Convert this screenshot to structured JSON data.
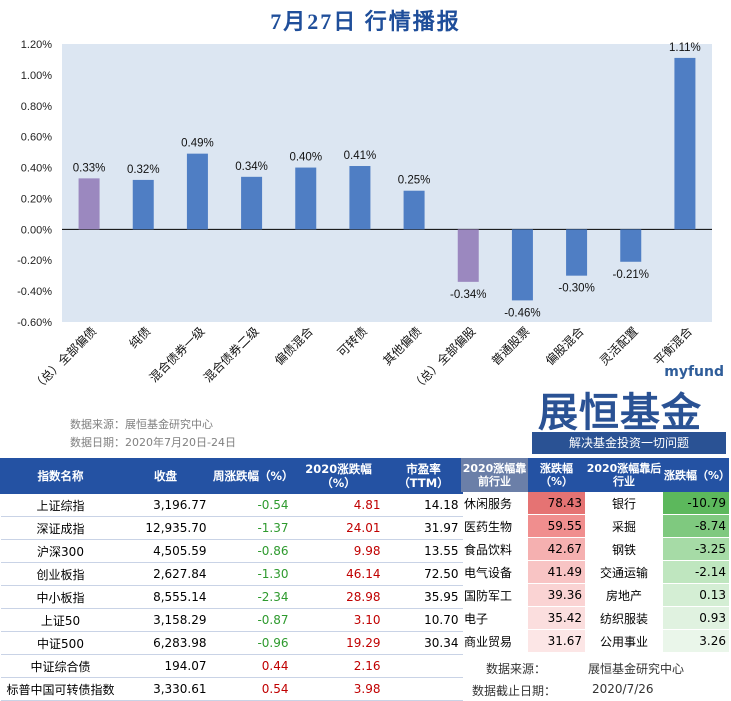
{
  "title": "7月27日  行情播报",
  "chart_data": {
    "type": "bar",
    "categories": [
      "（总）全部偏债",
      "纯债",
      "混合债券一级",
      "混合债券二级",
      "偏债混合",
      "可转债",
      "其他偏债",
      "（总）全部偏股",
      "普通股票",
      "偏股混合",
      "灵活配置",
      "平衡混合"
    ],
    "values": [
      0.33,
      0.32,
      0.49,
      0.34,
      0.4,
      0.41,
      0.25,
      -0.34,
      -0.46,
      -0.3,
      -0.21,
      1.11
    ],
    "data_labels": [
      "0.33%",
      "0.32%",
      "0.49%",
      "0.34%",
      "0.40%",
      "0.41%",
      "0.25%",
      "-0.34%",
      "-0.46%",
      "-0.30%",
      "-0.21%",
      "1.11%"
    ],
    "yticks": [
      "1.20%",
      "1.00%",
      "0.80%",
      "0.60%",
      "0.40%",
      "0.20%",
      "0.00%",
      "-0.20%",
      "-0.40%",
      "-0.60%"
    ],
    "ylim": [
      -0.6,
      1.2
    ],
    "colors": {
      "highlight": "#9b88bf",
      "normal": "#4f7ec4",
      "plot_bg": "#dce6f2"
    },
    "highlight_indices": [
      0,
      7
    ],
    "grid": false
  },
  "source": {
    "line1": "数据来源：展恒基金研究中心",
    "line2": "数据日期：2020年7月20日-24日"
  },
  "logo": {
    "myfund": "myfund",
    "brand": "展恒基金",
    "slogan": "解决基金投资一切问题"
  },
  "index_table": {
    "headers": [
      "指数名称",
      "收盘",
      "周涨跌幅（%）",
      "2020涨跌幅（%）",
      "市盈率（TTM）"
    ],
    "rows": [
      {
        "name": "上证综指",
        "close": "3,196.77",
        "week": "-0.54",
        "ytd": "4.81",
        "pe": "14.18"
      },
      {
        "name": "深证成指",
        "close": "12,935.70",
        "week": "-1.37",
        "ytd": "24.01",
        "pe": "31.97"
      },
      {
        "name": "沪深300",
        "close": "4,505.59",
        "week": "-0.86",
        "ytd": "9.98",
        "pe": "13.55"
      },
      {
        "name": "创业板指",
        "close": "2,627.84",
        "week": "-1.30",
        "ytd": "46.14",
        "pe": "72.50"
      },
      {
        "name": "中小板指",
        "close": "8,555.14",
        "week": "-2.34",
        "ytd": "28.98",
        "pe": "35.95"
      },
      {
        "name": "上证50",
        "close": "3,158.29",
        "week": "-0.87",
        "ytd": "3.10",
        "pe": "10.70"
      },
      {
        "name": "中证500",
        "close": "6,283.98",
        "week": "-0.96",
        "ytd": "19.29",
        "pe": "30.34"
      },
      {
        "name": "中证综合债",
        "close": "194.07",
        "week": "0.44",
        "ytd": "2.16",
        "pe": ""
      },
      {
        "name": "标普中国可转债指数",
        "close": "3,330.61",
        "week": "0.54",
        "ytd": "3.98",
        "pe": ""
      }
    ]
  },
  "industry_table": {
    "headers": [
      "2020涨幅靠前行业",
      "涨跌幅（%）",
      "2020涨幅靠后行业",
      "涨跌幅（%）"
    ],
    "rows": [
      {
        "top": "休闲服务",
        "top_chg": "78.43",
        "bottom": "银行",
        "bottom_chg": "-10.79"
      },
      {
        "top": "医药生物",
        "top_chg": "59.55",
        "bottom": "采掘",
        "bottom_chg": "-8.74"
      },
      {
        "top": "食品饮料",
        "top_chg": "42.67",
        "bottom": "钢铁",
        "bottom_chg": "-3.25"
      },
      {
        "top": "电气设备",
        "top_chg": "41.49",
        "bottom": "交通运输",
        "bottom_chg": "-2.14"
      },
      {
        "top": "国防军工",
        "top_chg": "39.36",
        "bottom": "房地产",
        "bottom_chg": "0.13"
      },
      {
        "top": "电子",
        "top_chg": "35.42",
        "bottom": "纺织服装",
        "bottom_chg": "0.93"
      },
      {
        "top": "商业贸易",
        "top_chg": "31.67",
        "bottom": "公用事业",
        "bottom_chg": "3.26"
      }
    ],
    "heat_colors": [
      "#e57373",
      "#f08e8e",
      "#f5b0b0",
      "#f8c4c4",
      "#fad3d3",
      "#fbdede",
      "#fce6e6"
    ],
    "cold_colors": [
      "#5cb85c",
      "#7fc97f",
      "#a6dba6",
      "#bfe6bf",
      "#d4eed4",
      "#e0f2e0",
      "#eaf6ea"
    ],
    "footer_source": "数据来源：",
    "footer_source_value": "展恒基金研究中心",
    "footer_date": "数据截止日期：",
    "footer_date_value": "2020/7/26"
  }
}
